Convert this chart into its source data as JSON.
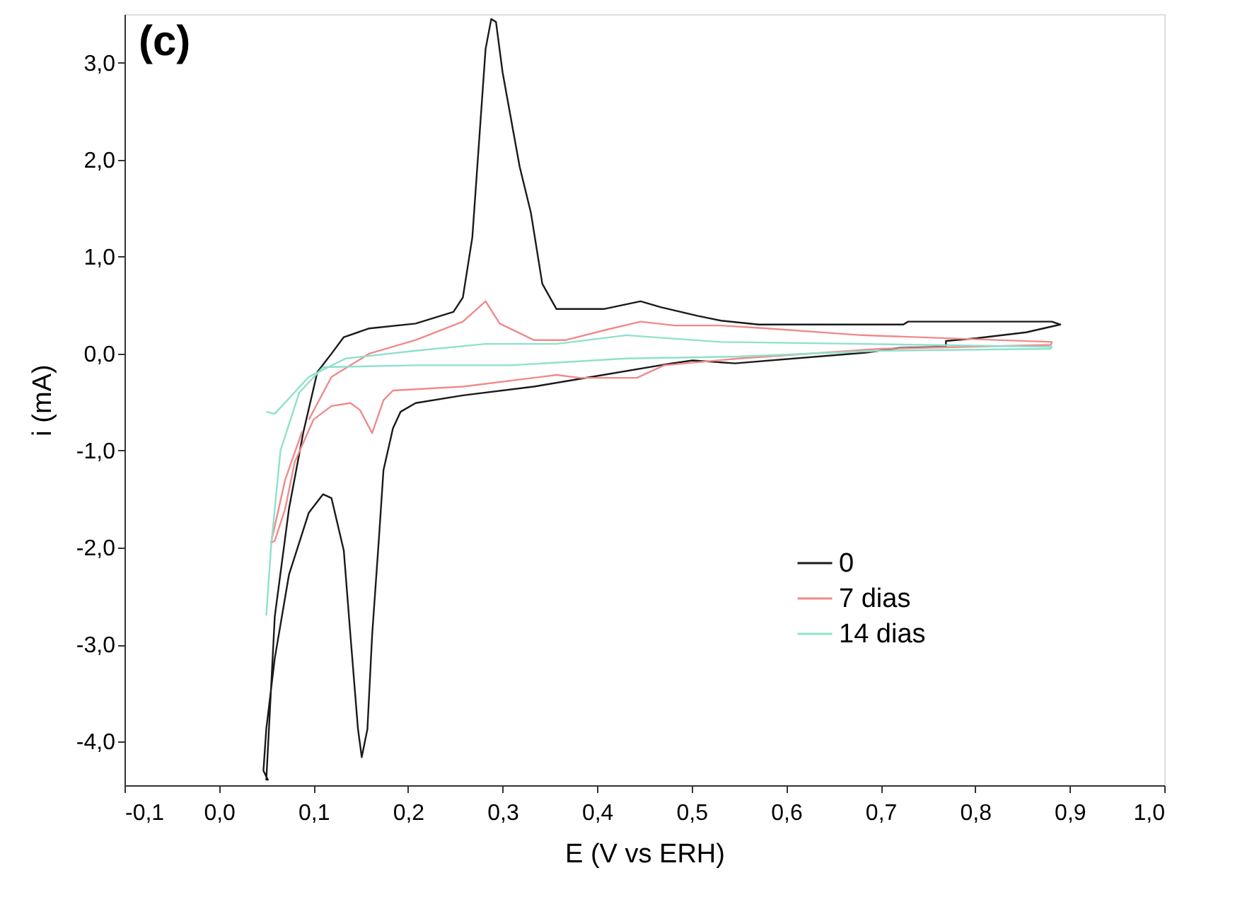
{
  "chart_data": {
    "type": "line",
    "xlabel": "E (V vs ERH)",
    "ylabel": "i (mA)",
    "annotations": [
      "(c)"
    ],
    "xlim": [
      -0.1,
      1.0
    ],
    "ylim": [
      -4.45,
      3.5
    ],
    "xticks": [
      {
        "value": -0.1,
        "label": "-0,1"
      },
      {
        "value": 0.0,
        "label": "0,0"
      },
      {
        "value": 0.1,
        "label": "0,1"
      },
      {
        "value": 0.2,
        "label": "0,2"
      },
      {
        "value": 0.3,
        "label": "0,3"
      },
      {
        "value": 0.4,
        "label": "0,4"
      },
      {
        "value": 0.5,
        "label": "0,5"
      },
      {
        "value": 0.6,
        "label": "0,6"
      },
      {
        "value": 0.7,
        "label": "0,7"
      },
      {
        "value": 0.8,
        "label": "0,8"
      },
      {
        "value": 0.9,
        "label": "0,9"
      },
      {
        "value": 1.0,
        "label": "1,0"
      }
    ],
    "yticks": [
      {
        "value": -4,
        "label": "-4,0"
      },
      {
        "value": -3,
        "label": "-3,0"
      },
      {
        "value": -2,
        "label": "-2,0"
      },
      {
        "value": -1,
        "label": "-1,0"
      },
      {
        "value": 0,
        "label": "0,0"
      },
      {
        "value": 1,
        "label": "1,0"
      },
      {
        "value": 2,
        "label": "2,0"
      },
      {
        "value": 3,
        "label": "3,0"
      }
    ],
    "grid": false,
    "legend": "bottom right",
    "marker": "none",
    "line_style": "solid",
    "series": [
      {
        "name": "0",
        "color": "#1a1a1a",
        "x": [
          0.05,
          0.059,
          0.074,
          0.089,
          0.104,
          0.119,
          0.132,
          0.159,
          0.208,
          0.248,
          0.258,
          0.268,
          0.275,
          0.282,
          0.288,
          0.293,
          0.3,
          0.318,
          0.33,
          0.342,
          0.357,
          0.407,
          0.446,
          0.467,
          0.506,
          0.531,
          0.571,
          0.724,
          0.729,
          0.881,
          0.89,
          0.854,
          0.802,
          0.769,
          0.769,
          0.721,
          0.684,
          0.546,
          0.501,
          0.479,
          0.382,
          0.333,
          0.258,
          0.208,
          0.192,
          0.184,
          0.174,
          0.169,
          0.162,
          0.157,
          0.151,
          0.147,
          0.139,
          0.132,
          0.119,
          0.11,
          0.095,
          0.074,
          0.059,
          0.05,
          0.047,
          0.052
        ],
        "values": [
          -4.4,
          -2.71,
          -1.6,
          -0.82,
          -0.19,
          0.0,
          0.17,
          0.26,
          0.31,
          0.43,
          0.58,
          1.2,
          2.17,
          3.14,
          3.45,
          3.42,
          2.9,
          1.93,
          1.45,
          0.72,
          0.46,
          0.46,
          0.54,
          0.48,
          0.39,
          0.34,
          0.3,
          0.3,
          0.33,
          0.33,
          0.3,
          0.22,
          0.16,
          0.13,
          0.07,
          0.06,
          0.01,
          -0.1,
          -0.07,
          -0.1,
          -0.26,
          -0.34,
          -0.43,
          -0.51,
          -0.6,
          -0.77,
          -1.2,
          -1.93,
          -2.9,
          -3.87,
          -4.16,
          -3.87,
          -2.9,
          -2.03,
          -1.49,
          -1.45,
          -1.64,
          -2.28,
          -3.14,
          -3.87,
          -4.3,
          -4.4
        ]
      },
      {
        "name": "7 dias",
        "color": "#f08a8a",
        "x": [
          0.095,
          0.119,
          0.159,
          0.208,
          0.258,
          0.282,
          0.297,
          0.333,
          0.367,
          0.407,
          0.446,
          0.482,
          0.531,
          0.58,
          0.68,
          0.881,
          0.88,
          0.7,
          0.55,
          0.471,
          0.442,
          0.382,
          0.357,
          0.258,
          0.184,
          0.174,
          0.162,
          0.149,
          0.139,
          0.119,
          0.1,
          0.08,
          0.07,
          0.059,
          0.055,
          0.07,
          0.088
        ],
        "values": [
          -0.68,
          -0.24,
          0.0,
          0.14,
          0.33,
          0.54,
          0.31,
          0.14,
          0.14,
          0.24,
          0.33,
          0.29,
          0.29,
          0.26,
          0.19,
          0.12,
          0.09,
          0.05,
          -0.05,
          -0.12,
          -0.25,
          -0.25,
          -0.22,
          -0.34,
          -0.38,
          -0.48,
          -0.82,
          -0.58,
          -0.51,
          -0.54,
          -0.68,
          -1.12,
          -1.6,
          -1.93,
          -1.95,
          -1.3,
          -0.8
        ]
      },
      {
        "name": "14 dias",
        "color": "#8fe0cc",
        "x": [
          0.05,
          0.059,
          0.095,
          0.134,
          0.208,
          0.282,
          0.357,
          0.431,
          0.531,
          0.68,
          0.881,
          0.88,
          0.7,
          0.55,
          0.431,
          0.308,
          0.208,
          0.11,
          0.085,
          0.065,
          0.055,
          0.05
        ],
        "values": [
          -0.6,
          -0.62,
          -0.24,
          -0.05,
          0.03,
          0.1,
          0.1,
          0.19,
          0.12,
          0.1,
          0.07,
          0.05,
          0.03,
          -0.03,
          -0.05,
          -0.12,
          -0.12,
          -0.14,
          -0.4,
          -1.0,
          -2.0,
          -2.7
        ]
      }
    ]
  }
}
